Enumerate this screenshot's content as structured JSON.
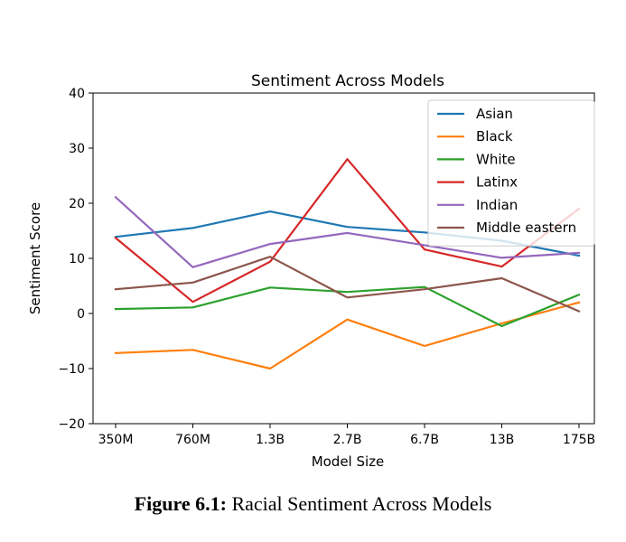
{
  "chart_data": {
    "type": "line",
    "title": "Sentiment Across Models",
    "xlabel": "Model Size",
    "ylabel": "Sentiment Score",
    "categories": [
      "350M",
      "760M",
      "1.3B",
      "2.7B",
      "6.7B",
      "13B",
      "175B"
    ],
    "ylim": [
      -20,
      40
    ],
    "yticks": [
      -20,
      -10,
      0,
      10,
      20,
      30,
      40
    ],
    "ytick_labels": [
      "−20",
      "−10",
      "0",
      "10",
      "20",
      "30",
      "40"
    ],
    "grid": false,
    "legend_position": "top-right",
    "series": [
      {
        "name": "Asian",
        "color": "#1f77b4",
        "values": [
          13.9,
          15.5,
          18.5,
          15.7,
          14.7,
          13.2,
          10.5
        ]
      },
      {
        "name": "Black",
        "color": "#ff7f0e",
        "values": [
          -7.2,
          -6.6,
          -10.0,
          -1.1,
          -5.9,
          -1.8,
          2.0
        ]
      },
      {
        "name": "White",
        "color": "#2ca02c",
        "values": [
          0.8,
          1.1,
          4.7,
          3.9,
          4.8,
          -2.3,
          3.4
        ]
      },
      {
        "name": "Latinx",
        "color": "#d62728",
        "values": [
          13.7,
          2.1,
          9.4,
          28.0,
          11.6,
          8.5,
          19.0
        ]
      },
      {
        "name": "Indian",
        "color": "#9467bd",
        "values": [
          21.1,
          8.4,
          12.6,
          14.6,
          12.4,
          10.1,
          11.0
        ]
      },
      {
        "name": "Middle eastern",
        "color": "#8c564b",
        "values": [
          4.4,
          5.6,
          10.3,
          2.9,
          4.4,
          6.4,
          0.4
        ]
      }
    ]
  },
  "caption": {
    "number": "Figure 6.1:",
    "text": " Racial Sentiment Across Models"
  }
}
